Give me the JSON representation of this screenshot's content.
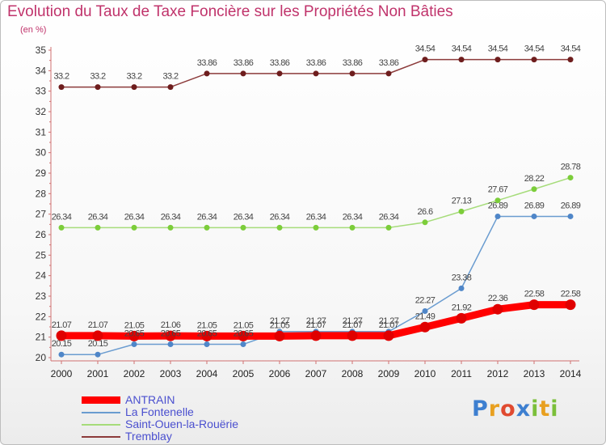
{
  "chart_data": {
    "type": "line",
    "title": "Evolution du Taux de Taxe Foncière sur les Propriétés Non Bâties",
    "ylabel": "(en %)",
    "xlabel": "",
    "ylim": [
      20,
      35
    ],
    "yticks": [
      "20",
      "21",
      "22",
      "23",
      "24",
      "25",
      "26",
      "27",
      "28",
      "29",
      "30",
      "31",
      "32",
      "33",
      "34",
      "35"
    ],
    "categories": [
      "2000",
      "2001",
      "2002",
      "2003",
      "2004",
      "2005",
      "2006",
      "2007",
      "2008",
      "2009",
      "2010",
      "2011",
      "2012",
      "2013",
      "2014"
    ],
    "series": [
      {
        "name": "ANTRAIN",
        "color": "#ff0000",
        "marker": "#e00000",
        "values": [
          21.07,
          21.07,
          21.05,
          21.06,
          21.05,
          21.05,
          21.05,
          21.07,
          21.07,
          21.07,
          21.49,
          21.92,
          22.36,
          22.58,
          22.58
        ],
        "labels": [
          "21.07",
          "21.07",
          "21.05",
          "21.06",
          "21.05",
          "21.05",
          "21.05",
          "21.07",
          "21.07",
          "21.07",
          "21.49",
          "21.92",
          "22.36",
          "22.58",
          "22.58"
        ]
      },
      {
        "name": "La Fontenelle",
        "color": "#6a9cd0",
        "marker": "#4f86c8",
        "values": [
          20.15,
          20.15,
          20.65,
          20.65,
          20.65,
          20.65,
          21.27,
          21.27,
          21.27,
          21.27,
          22.27,
          23.38,
          26.89,
          26.89,
          26.89
        ],
        "labels": [
          "20.15",
          "20.15",
          "20.65",
          "20.65",
          "20.65",
          "20.65",
          "21.27",
          "21.27",
          "21.27",
          "21.27",
          "22.27",
          "23.38",
          "26.89",
          "26.89",
          "26.89"
        ]
      },
      {
        "name": "Saint-Ouen-la-Rouërie",
        "color": "#a6dc7a",
        "marker": "#7ccd3a",
        "values": [
          26.34,
          26.34,
          26.34,
          26.34,
          26.34,
          26.34,
          26.34,
          26.34,
          26.34,
          26.34,
          26.6,
          27.13,
          27.67,
          28.22,
          28.78
        ],
        "labels": [
          "26.34",
          "26.34",
          "26.34",
          "26.34",
          "26.34",
          "26.34",
          "26.34",
          "26.34",
          "26.34",
          "26.34",
          "26.6",
          "27.13",
          "27.67",
          "28.22",
          "28.78"
        ]
      },
      {
        "name": "Tremblay",
        "color": "#8c3b3b",
        "marker": "#6e1d1d",
        "values": [
          33.2,
          33.2,
          33.2,
          33.2,
          33.86,
          33.86,
          33.86,
          33.86,
          33.86,
          33.86,
          34.54,
          34.54,
          34.54,
          34.54,
          34.54
        ],
        "labels": [
          "33.2",
          "33.2",
          "33.2",
          "33.2",
          "33.86",
          "33.86",
          "33.86",
          "33.86",
          "33.86",
          "33.86",
          "34.54",
          "34.54",
          "34.54",
          "34.54",
          "34.54"
        ]
      }
    ],
    "legend": [
      "ANTRAIN",
      "La Fontenelle",
      "Saint-Ouen-la-Rouërie",
      "Tremblay"
    ],
    "grid": false,
    "legend_position": "bottom-left"
  },
  "branding": {
    "logo_letters": [
      "P",
      "r",
      "o",
      "x",
      "i",
      "t",
      "i"
    ],
    "logo_colors": [
      "#3d7fd0",
      "#e8a020",
      "#e04a30",
      "#3d7fd0",
      "#7bbf3a",
      "#e8a020",
      "#7bbf3a"
    ]
  }
}
